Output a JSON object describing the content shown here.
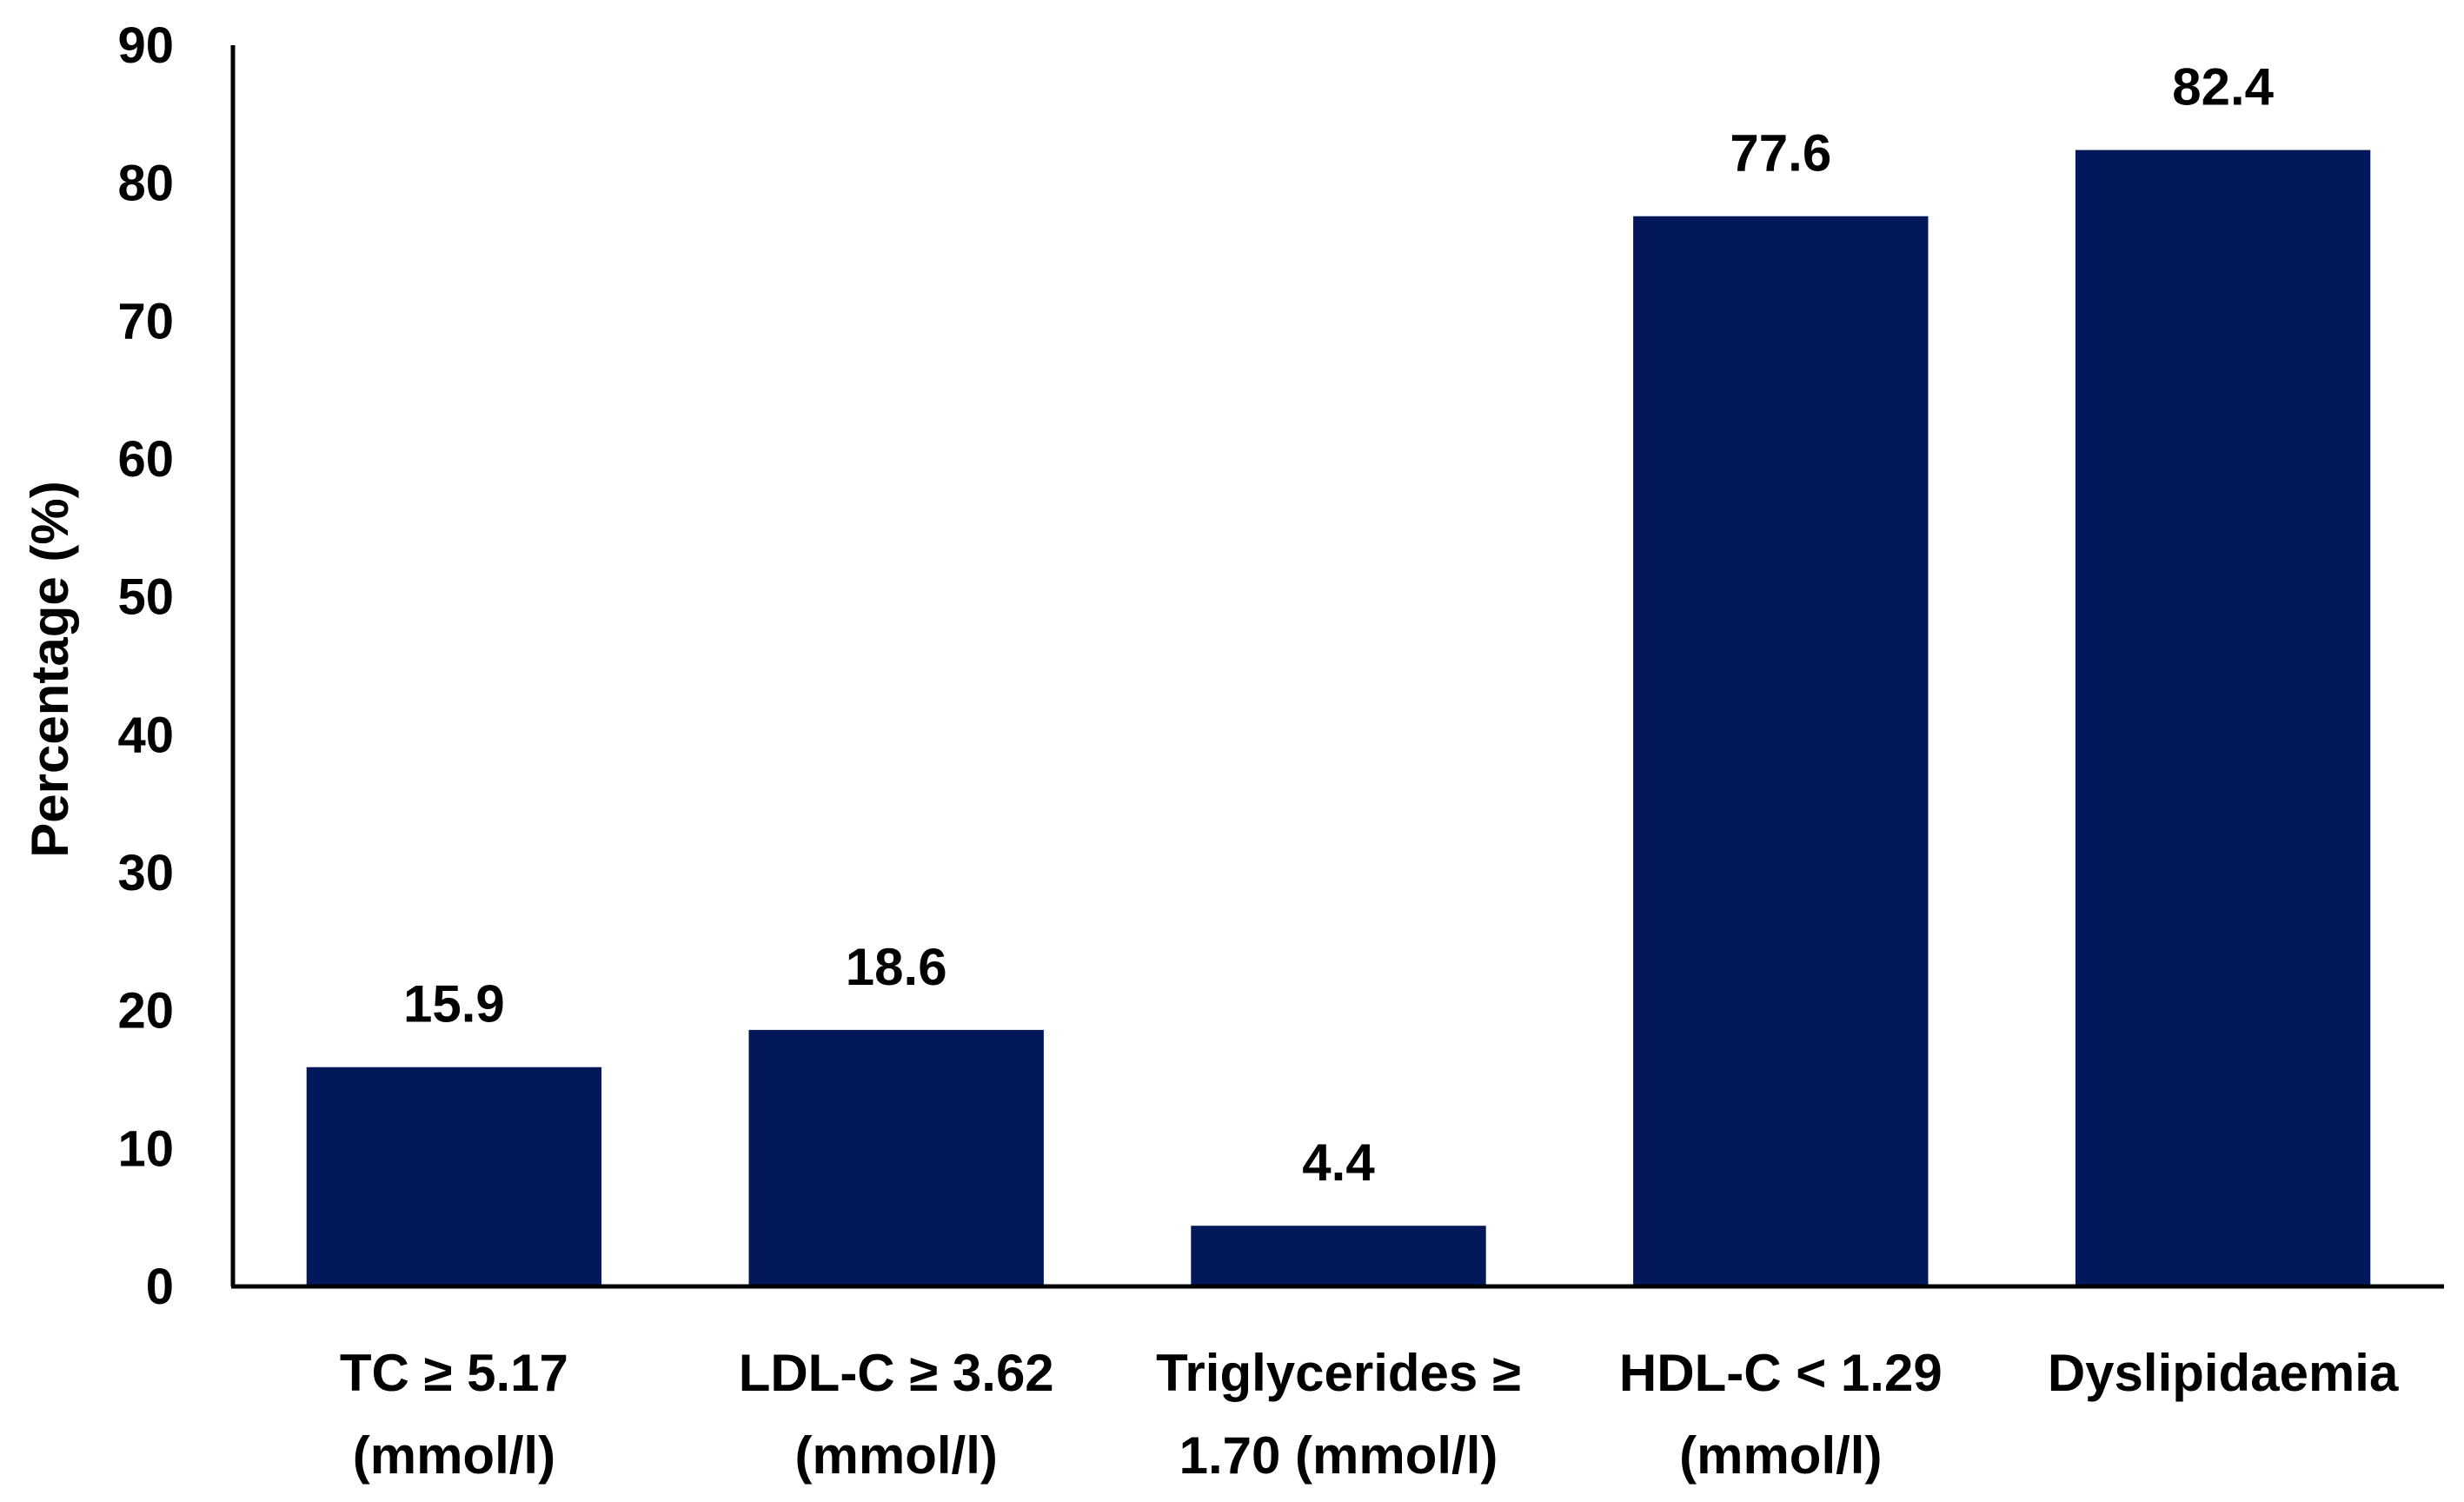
{
  "chart_data": {
    "type": "bar",
    "title": "",
    "xlabel": "",
    "ylabel": "Percentage (%)",
    "ylim": [
      0,
      90
    ],
    "yticks": [
      "0",
      "10",
      "20",
      "30",
      "40",
      "50",
      "60",
      "70",
      "80",
      "90"
    ],
    "grid": false,
    "bar_color": "#03185B",
    "categories": [
      [
        "TC ≥ 5.17",
        "(mmol/l)"
      ],
      [
        "LDL-C ≥ 3.62",
        "(mmol/l)"
      ],
      [
        "Triglycerides ≥",
        "1.70 (mmol/l)"
      ],
      [
        "HDL-C < 1.29",
        "(mmol/l)"
      ],
      [
        "Dyslipidaemia"
      ]
    ],
    "values": [
      15.9,
      18.6,
      4.4,
      77.6,
      82.4
    ],
    "value_labels": [
      "15.9",
      "18.6",
      "4.4",
      "77.6",
      "82.4"
    ]
  }
}
